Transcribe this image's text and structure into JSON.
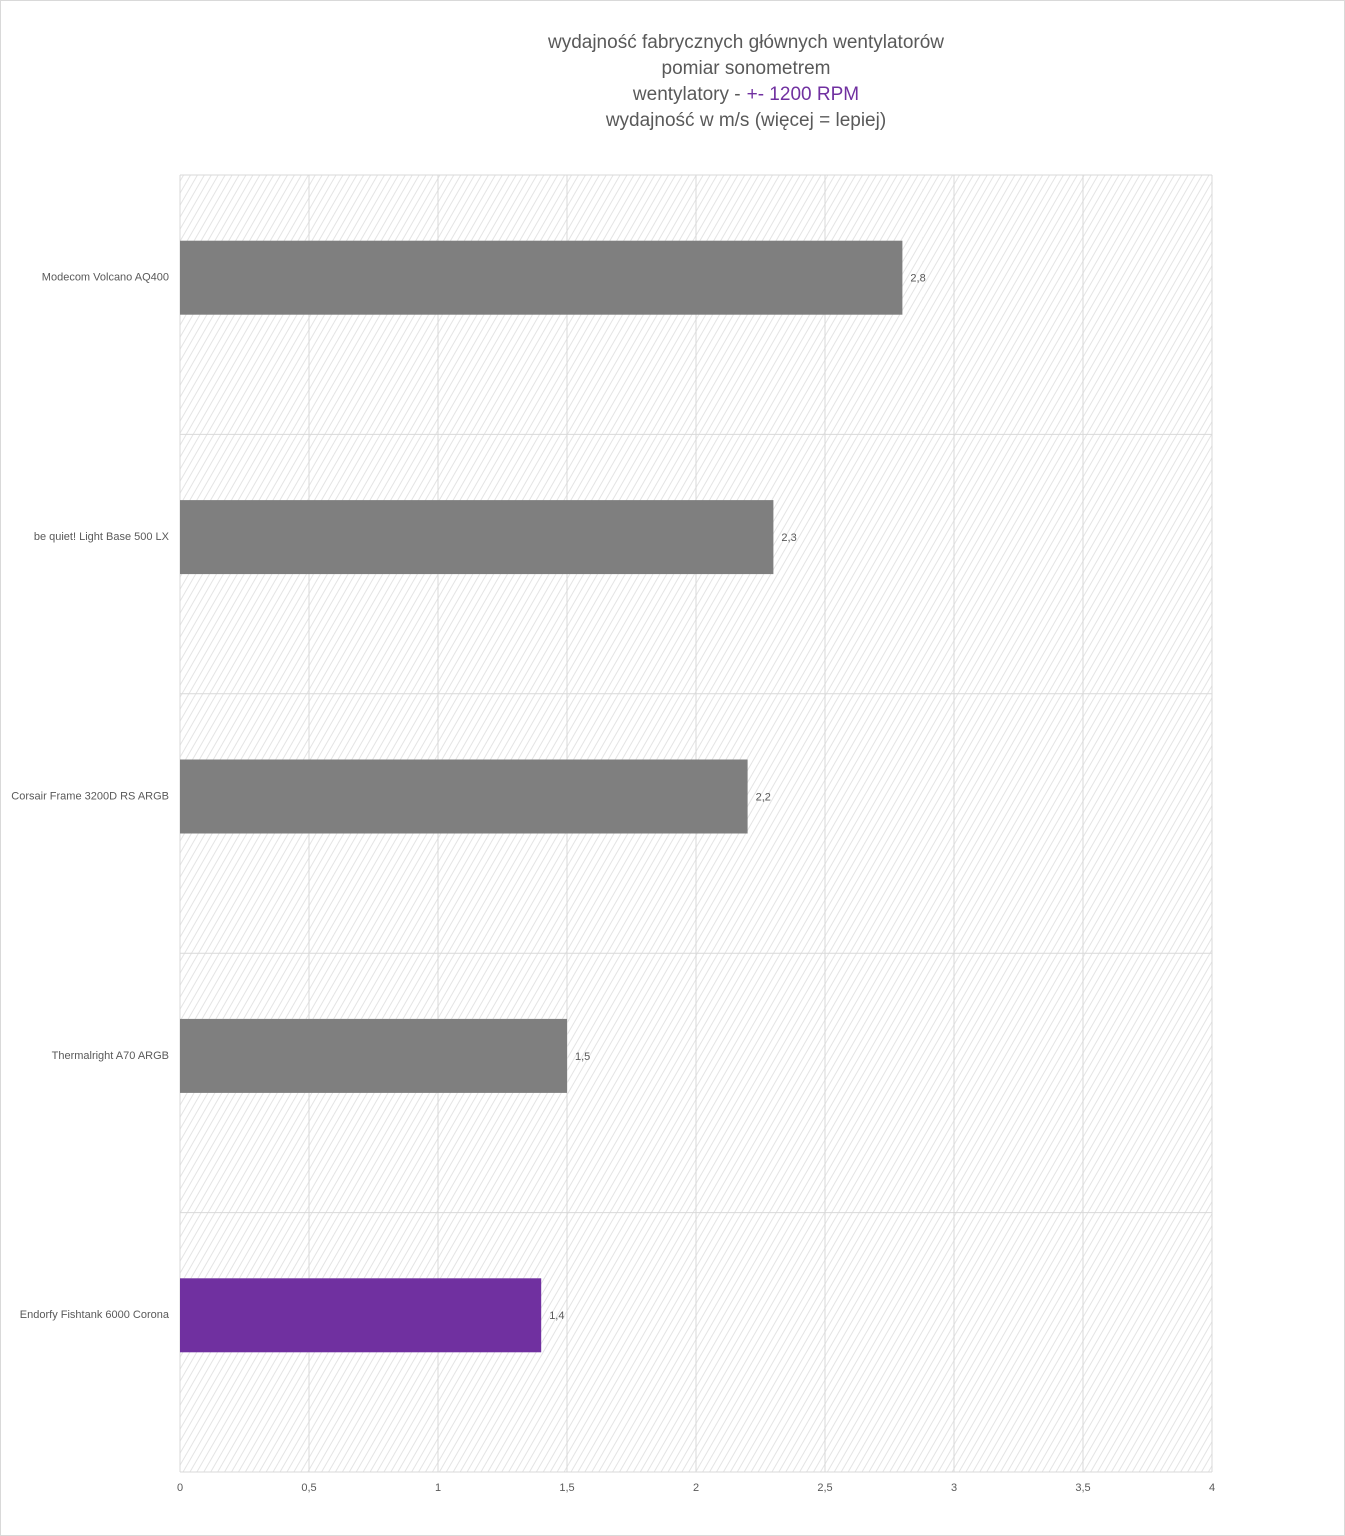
{
  "chart_data": {
    "type": "hbar",
    "title": [
      "wydajność fabrycznych głównych wentylatorów",
      "pomiar sonometrem",
      [
        "wentylatory -",
        "+- 1200 RPM"
      ],
      "wydajność w m/s (więcej = lepiej)"
    ],
    "title_highlight_color": "#7030a0",
    "categories": [
      "Modecom Volcano AQ400",
      "be quiet! Light Base 500 LX",
      "Corsair Frame 3200D RS ARGB",
      "Thermalright A70 ARGB",
      "Endorfy Fishtank 6000 Corona"
    ],
    "values": [
      2.8,
      2.3,
      2.2,
      1.5,
      1.4
    ],
    "value_labels": [
      "2,8",
      "2,3",
      "2,2",
      "1,5",
      "1,4"
    ],
    "colors": [
      "#7f7f7f",
      "#7f7f7f",
      "#7f7f7f",
      "#7f7f7f",
      "#7030a0"
    ],
    "xlim": [
      0,
      4
    ],
    "xticks": [
      0,
      {
        "value": 0.5,
        "label": "0,5"
      },
      1,
      {
        "value": 1.5,
        "label": "1,5"
      },
      2,
      {
        "value": 2.5,
        "label": "2,5"
      },
      3,
      {
        "value": 3.5,
        "label": "3,5"
      },
      4
    ],
    "grid": true
  }
}
